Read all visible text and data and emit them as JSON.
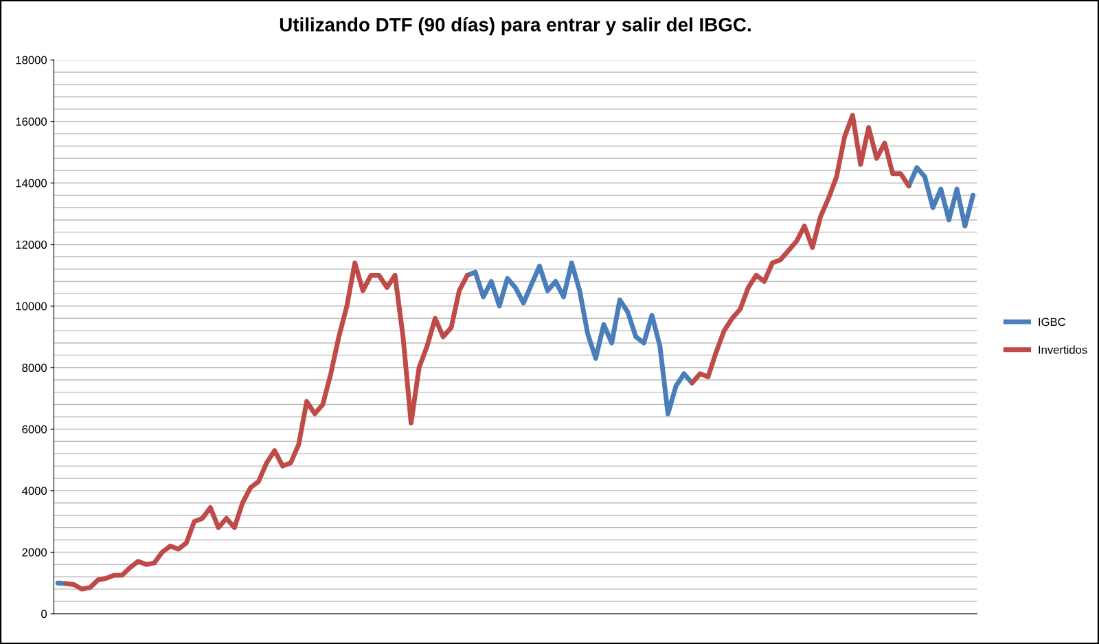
{
  "chart_data": {
    "type": "line",
    "title": "Utilizando DTF (90 días) para entrar y salir del IBGC.",
    "categories": [
      null,
      null,
      null,
      null,
      null,
      null,
      null,
      null,
      null,
      null,
      null,
      null,
      null,
      null,
      null,
      null,
      null,
      null,
      null,
      null,
      null,
      null,
      null,
      null,
      null,
      null,
      null,
      null,
      null,
      null,
      null,
      null,
      null,
      null,
      null,
      null,
      null,
      null,
      null,
      null,
      null,
      null,
      null,
      null,
      null,
      null,
      null,
      null,
      null,
      null,
      null,
      null,
      null,
      null,
      null,
      null,
      null,
      null,
      null,
      null,
      null,
      null,
      null,
      null,
      null,
      null,
      null,
      null,
      null,
      null,
      null,
      null,
      null,
      null,
      null,
      null,
      null,
      null,
      null,
      null,
      null,
      null,
      null,
      null,
      null,
      null,
      null,
      null,
      null,
      null,
      null,
      null,
      null,
      null,
      null,
      null,
      null,
      null,
      null,
      null,
      null,
      null,
      null,
      null,
      null,
      null,
      null,
      null,
      null,
      null,
      null,
      null,
      null,
      null,
      null
    ],
    "series": [
      {
        "name": "IGBC",
        "color": "#4a7ebb",
        "values": [
          1000,
          980,
          null,
          null,
          null,
          null,
          null,
          null,
          null,
          null,
          null,
          null,
          null,
          null,
          null,
          null,
          null,
          null,
          null,
          null,
          null,
          null,
          null,
          null,
          null,
          null,
          null,
          null,
          null,
          null,
          null,
          null,
          null,
          null,
          null,
          null,
          null,
          null,
          null,
          null,
          null,
          null,
          null,
          null,
          null,
          null,
          null,
          null,
          null,
          null,
          null,
          11000,
          11100,
          10300,
          10800,
          10000,
          10900,
          10600,
          10100,
          10700,
          11300,
          10500,
          10800,
          10300,
          11400,
          10500,
          9100,
          8300,
          9400,
          8800,
          10200,
          9800,
          9000,
          8800,
          9700,
          8700,
          6500,
          7400,
          7800,
          7500,
          null,
          null,
          null,
          null,
          null,
          null,
          null,
          null,
          null,
          null,
          null,
          null,
          null,
          null,
          null,
          null,
          null,
          null,
          null,
          null,
          null,
          null,
          null,
          null,
          null,
          null,
          13900,
          14500,
          14200,
          13200,
          13800,
          12800,
          13800,
          12600,
          13600
        ]
      },
      {
        "name": "Invertidos",
        "color": "#be4b48",
        "values": [
          null,
          980,
          950,
          800,
          850,
          1100,
          1150,
          1250,
          1250,
          1500,
          1700,
          1600,
          1650,
          2000,
          2200,
          2100,
          2300,
          3000,
          3100,
          3450,
          2800,
          3100,
          2800,
          3600,
          4100,
          4300,
          4900,
          5300,
          4800,
          4900,
          5500,
          6900,
          6500,
          6800,
          7800,
          9000,
          10000,
          11400,
          10500,
          11000,
          11000,
          10600,
          11000,
          9000,
          6200,
          8000,
          8700,
          9600,
          9000,
          9300,
          10500,
          11000,
          null,
          null,
          null,
          null,
          null,
          null,
          null,
          null,
          null,
          null,
          null,
          null,
          null,
          null,
          null,
          null,
          null,
          null,
          null,
          null,
          null,
          null,
          null,
          null,
          null,
          null,
          null,
          7500,
          7800,
          7700,
          8500,
          9200,
          9600,
          9900,
          10600,
          11000,
          10800,
          11400,
          11500,
          11800,
          12100,
          12600,
          11900,
          12900,
          13500,
          14200,
          15500,
          16200,
          14600,
          15800,
          14800,
          15300,
          14300,
          14300,
          13900,
          null,
          null,
          null,
          null,
          null,
          null,
          null,
          null
        ]
      }
    ],
    "ylim": [
      0,
      18000
    ],
    "yticks": [
      0,
      2000,
      4000,
      6000,
      8000,
      10000,
      12000,
      14000,
      16000,
      18000
    ],
    "grid": "y",
    "legend": "right"
  }
}
